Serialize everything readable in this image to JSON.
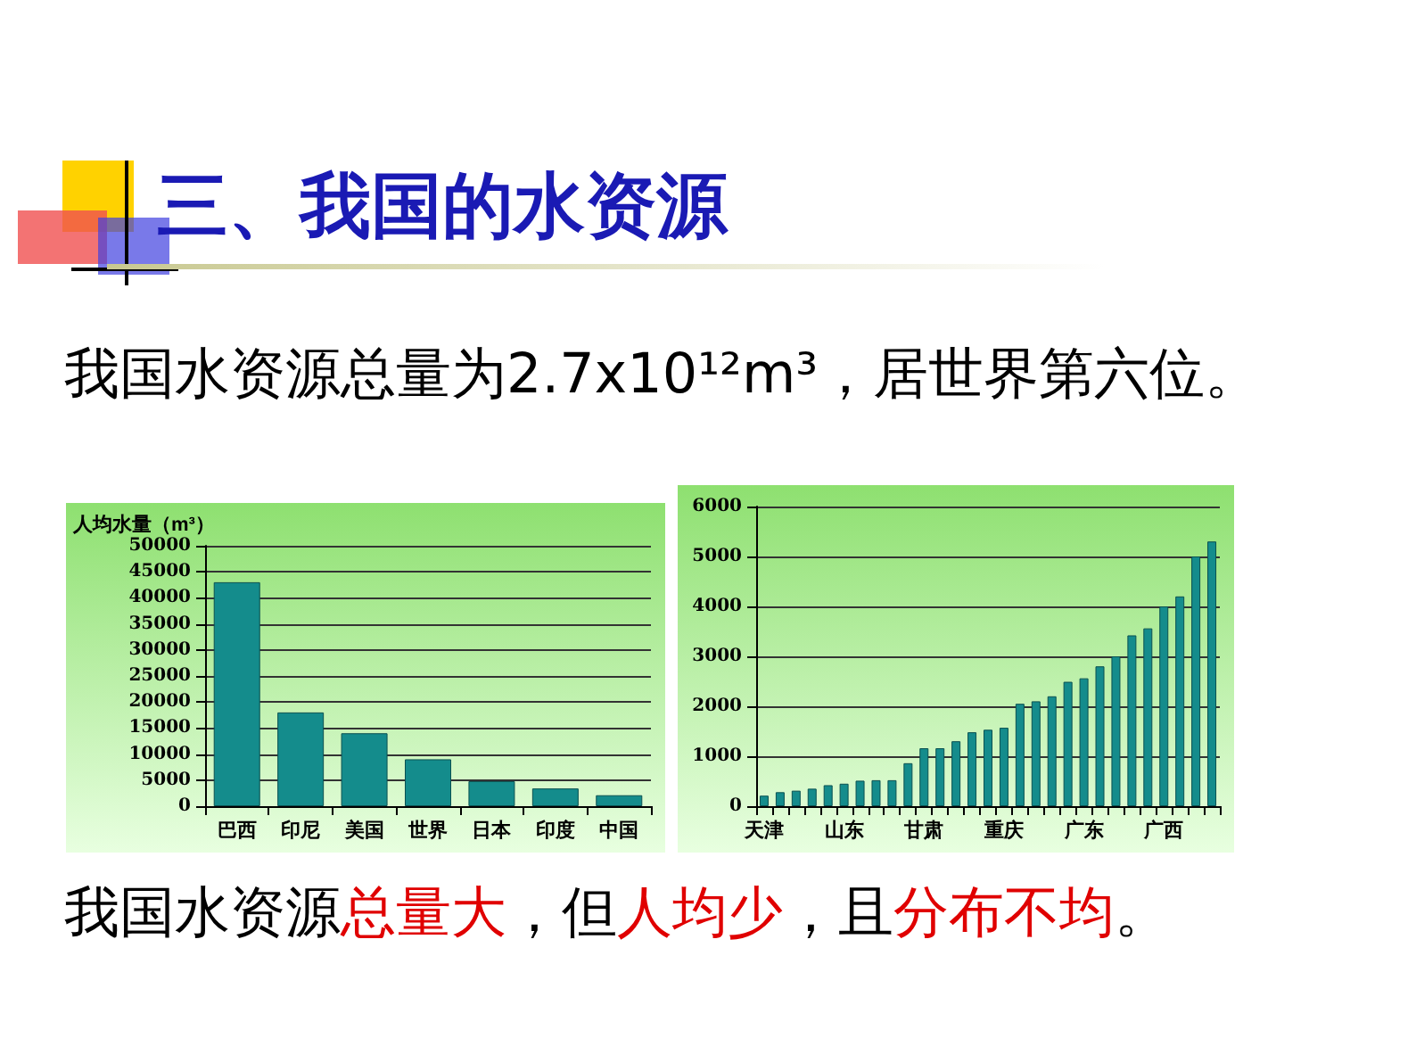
{
  "chart_data": [
    {
      "type": "bar",
      "title": "三、我国的水资源",
      "subtitle": "我国水资源总量为2.7x10¹²m³，居世界第六位。",
      "annotations": [
        "我国水资源",
        "总量大",
        "，但",
        "人均少",
        "，且",
        "分布不均",
        "。"
      ],
      "ylabel": "人均水量（m³）",
      "categories": [
        "巴西",
        "印尼",
        "美国",
        "世界",
        "日本",
        "印度",
        "中国"
      ],
      "values": [
        43000,
        18000,
        14000,
        9000,
        4800,
        3400,
        2100
      ],
      "color": "#148c8c",
      "ylim": [
        0,
        50000
      ],
      "yticks": [
        0,
        5000,
        10000,
        15000,
        20000,
        25000,
        30000,
        35000,
        40000,
        45000,
        50000
      ],
      "grid": "y"
    },
    {
      "type": "bar",
      "categories": [
        "天津",
        null,
        null,
        null,
        null,
        "山东",
        null,
        null,
        null,
        null,
        "甘肃",
        null,
        null,
        null,
        null,
        "重庆",
        null,
        null,
        null,
        null,
        "广东",
        null,
        null,
        null,
        null,
        "广西",
        null,
        null,
        null
      ],
      "values": [
        210,
        280,
        310,
        350,
        420,
        450,
        510,
        520,
        520,
        860,
        1160,
        1160,
        1300,
        1480,
        1530,
        1570,
        2050,
        2100,
        2200,
        2490,
        2560,
        2800,
        3000,
        3420,
        3560,
        4000,
        4200,
        5000,
        5300
      ],
      "color": "#148c8c",
      "ylim": [
        0,
        6000
      ],
      "yticks": [
        0,
        1000,
        2000,
        3000,
        4000,
        5000,
        6000
      ],
      "grid": "y"
    }
  ]
}
